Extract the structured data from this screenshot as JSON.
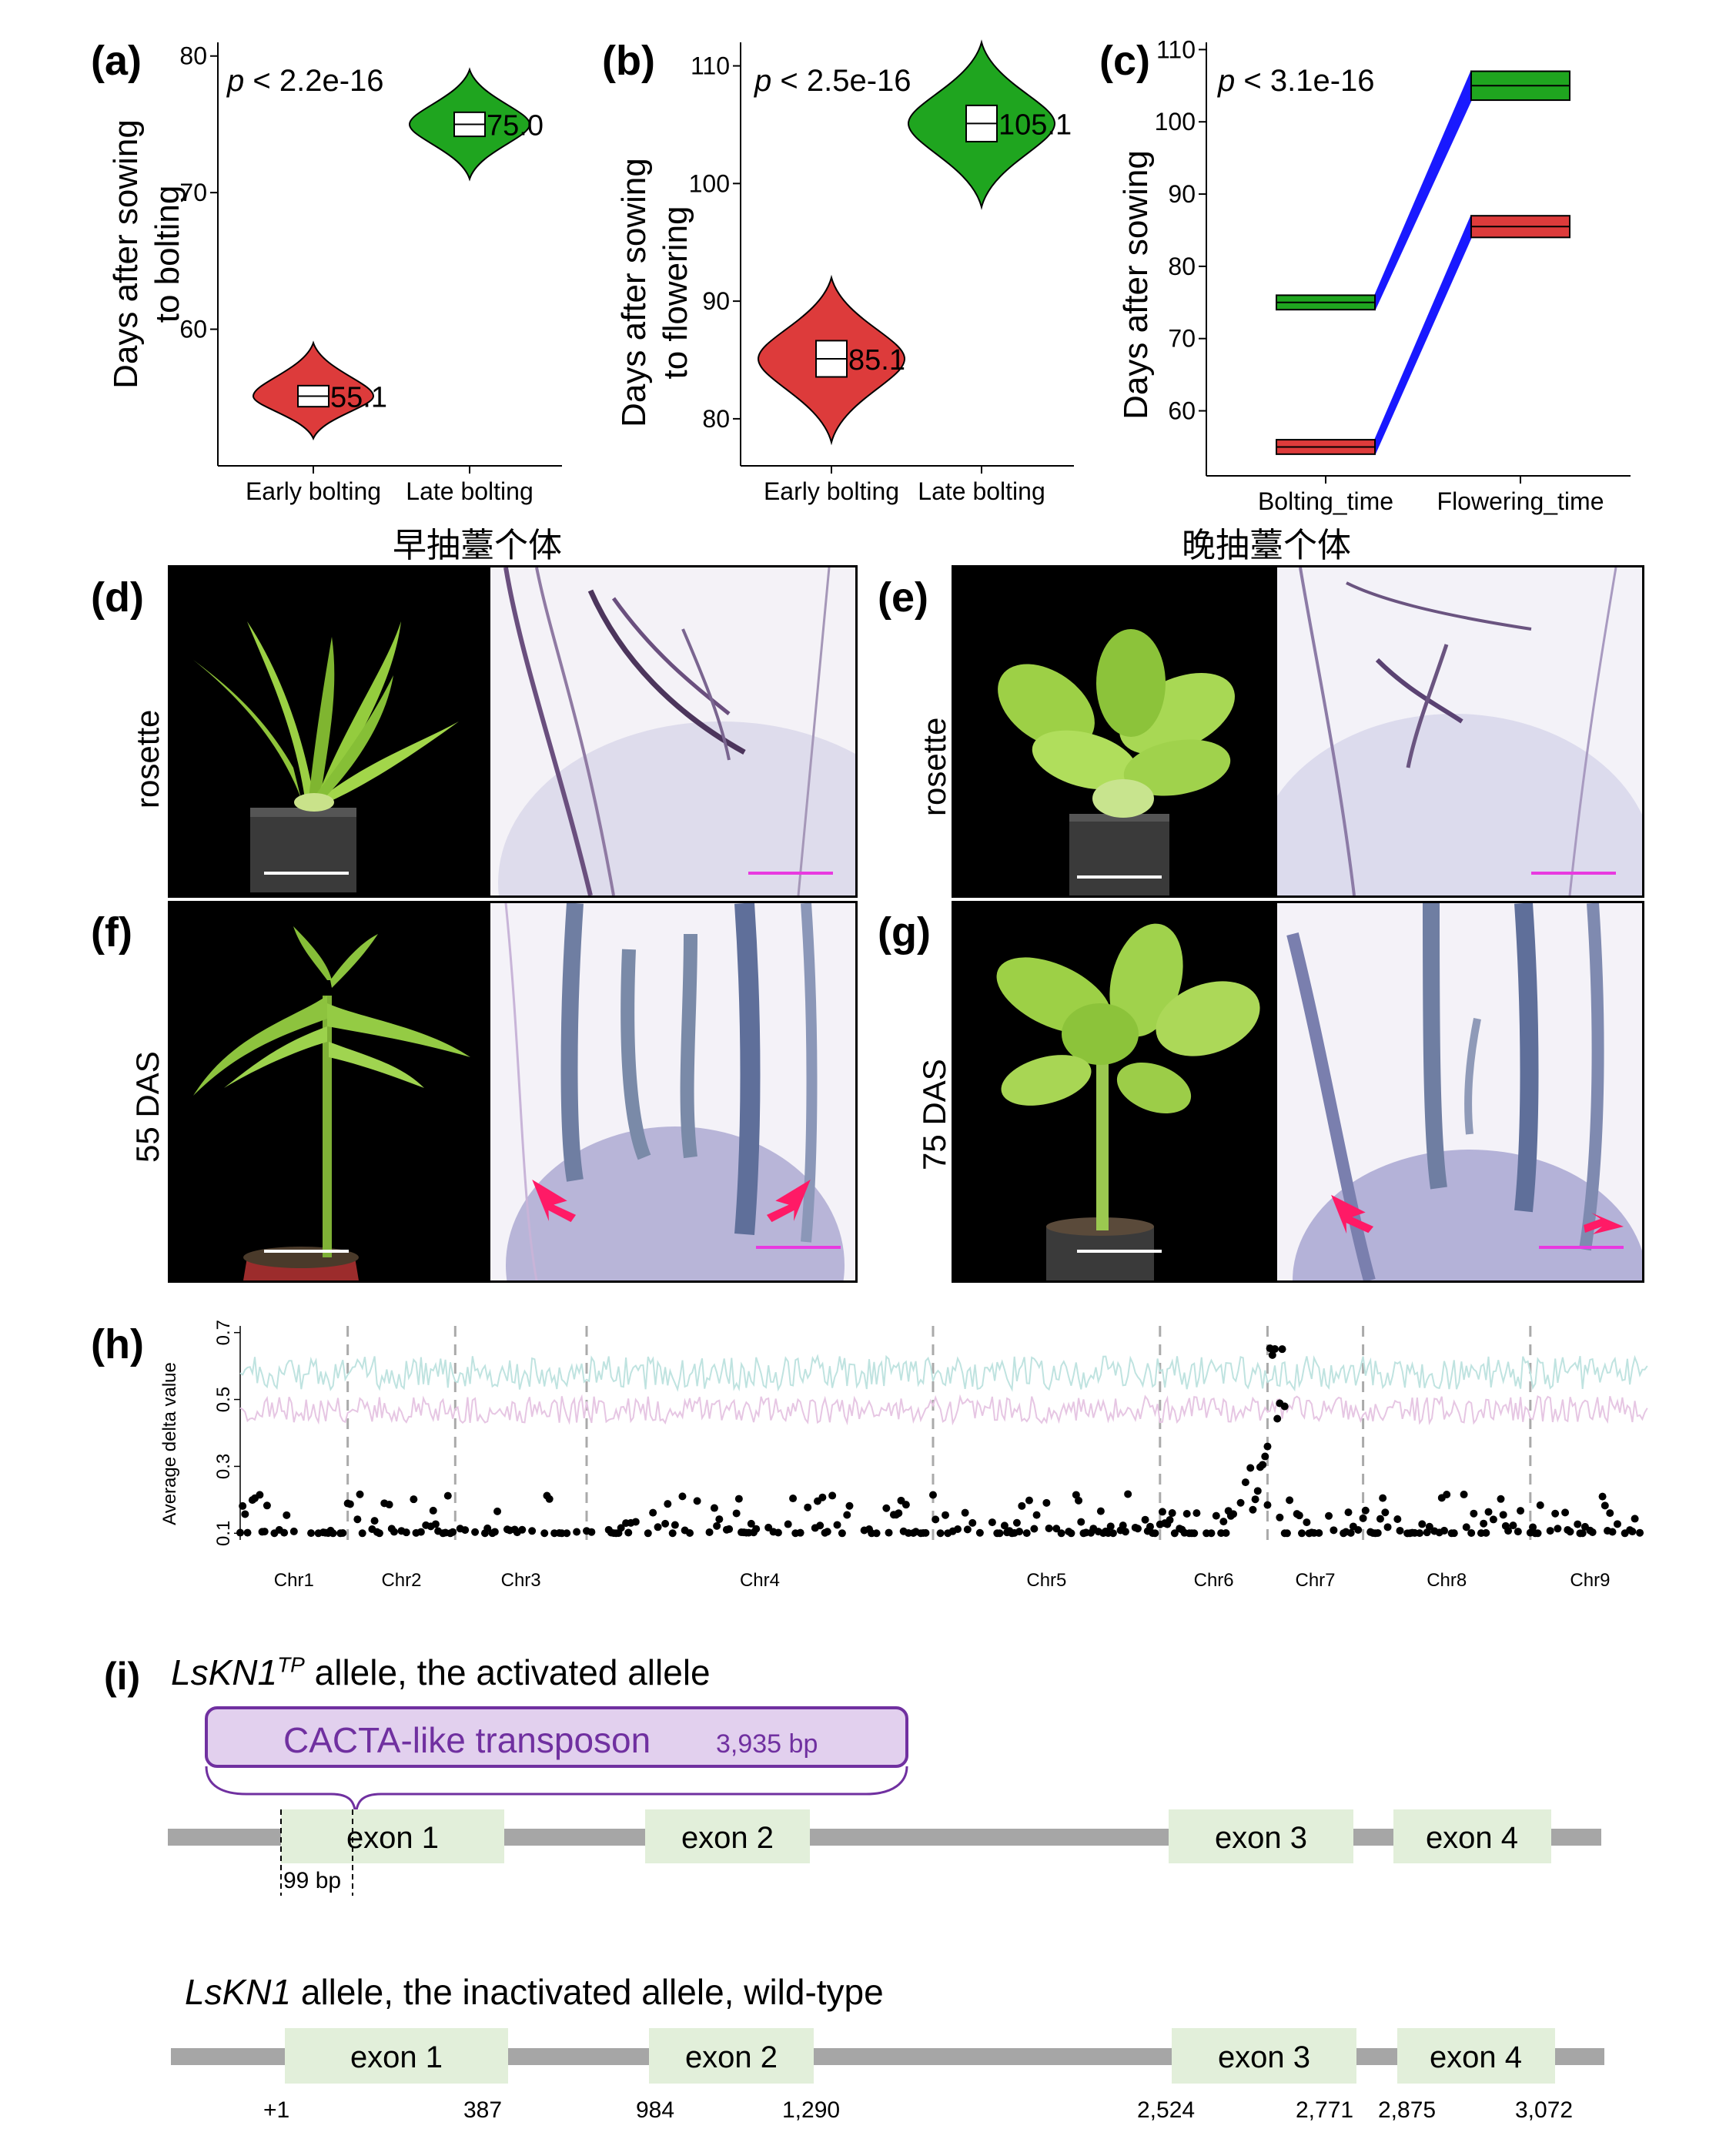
{
  "panels": {
    "a": "(a)",
    "b": "(b)",
    "c": "(c)",
    "d": "(d)",
    "e": "(e)",
    "f": "(f)",
    "g": "(g)",
    "h": "(h)",
    "i": "(i)"
  },
  "chart_data": [
    {
      "id": "a",
      "type": "violin",
      "ylabel_line1": "Days after sowing",
      "ylabel_line2": "to bolting",
      "annotation_p": "p",
      "annotation_rest": " < 2.2e-16",
      "categories": [
        "Early bolting",
        "Late bolting"
      ],
      "yticks": [
        "60",
        "70",
        "80"
      ],
      "tick_values": [
        60,
        70,
        80
      ],
      "ylim": [
        50,
        81
      ],
      "medians": [
        55.1,
        75.0
      ],
      "median_labels": [
        "55.1",
        "75.0"
      ],
      "ranges": [
        [
          52,
          59
        ],
        [
          71,
          79
        ]
      ],
      "colors": [
        "#dd3b3b",
        "#1fa51f"
      ]
    },
    {
      "id": "b",
      "type": "violin",
      "ylabel_line1": "Days after sowing",
      "ylabel_line2": "to flowering",
      "annotation_p": "p",
      "annotation_rest": " < 2.5e-16",
      "categories": [
        "Early bolting",
        "Late bolting"
      ],
      "yticks": [
        "80",
        "90",
        "100",
        "110"
      ],
      "tick_values": [
        80,
        90,
        100,
        110
      ],
      "ylim": [
        76,
        112
      ],
      "medians": [
        85.1,
        105.1
      ],
      "median_labels": [
        "85.1",
        "105.1"
      ],
      "ranges": [
        [
          78,
          92
        ],
        [
          98,
          112
        ]
      ],
      "colors": [
        "#dd3b3b",
        "#1fa51f"
      ]
    },
    {
      "id": "c",
      "type": "paired-lines",
      "ylabel": "Days after sowing",
      "annotation_p": "p",
      "annotation_rest": " < 3.1e-16",
      "categories": [
        "Bolting_time",
        "Flowering_time"
      ],
      "yticks": [
        "60",
        "70",
        "80",
        "90",
        "100",
        "110"
      ],
      "tick_values": [
        60,
        70,
        80,
        90,
        100,
        110
      ],
      "ylim": [
        51,
        111
      ],
      "groups": [
        {
          "color": "#dd3b3b",
          "box_x1": [
            54,
            56
          ],
          "box_x2": [
            84,
            87
          ],
          "from": [
            54,
            56
          ],
          "to": [
            84,
            87
          ]
        },
        {
          "color": "#1fa51f",
          "box_x1": [
            74,
            76
          ],
          "box_x2": [
            103,
            107
          ],
          "from": [
            74,
            76
          ],
          "to": [
            103,
            107
          ]
        }
      ]
    }
  ],
  "titles": {
    "early": "早抽薹个体",
    "late": "晚抽薹个体"
  },
  "row_labels": {
    "d": "rosette",
    "e": "rosette",
    "f": "55 DAS",
    "g": "75 DAS"
  },
  "manhattan": {
    "ylabel": "Average delta value",
    "yticks": [
      "0.1",
      "0.3",
      "0.5",
      "0.7"
    ],
    "tick_values": [
      0.1,
      0.3,
      0.5,
      0.7
    ],
    "ylim": [
      0.08,
      0.72
    ],
    "chromosomes": [
      "Chr1",
      "Chr2",
      "Chr3",
      "Chr4",
      "Chr5",
      "Chr6",
      "Chr7",
      "Chr8",
      "Chr9"
    ],
    "chr_widths": [
      0.09,
      0.09,
      0.11,
      0.29,
      0.19,
      0.09,
      0.08,
      0.14,
      0.1
    ],
    "threshold_high_color": "#bfe3e0",
    "threshold_low_color": "#e6c6e3",
    "threshold_high": 0.58,
    "threshold_low": 0.47
  },
  "gene": {
    "allele1_name": "LsKN1",
    "allele1_sup": "TP",
    "allele1_desc": " allele, the activated allele",
    "transposon_label": "CACTA-like transposon",
    "transposon_size": "3,935 bp",
    "insertion_label": "99 bp",
    "allele2_name": "LsKN1",
    "allele2_desc": " allele, the inactivated allele, wild-type",
    "exons": [
      "exon 1",
      "exon 2",
      "exon 3",
      "exon 4"
    ],
    "coords": [
      "+1",
      "387",
      "984",
      "1,290",
      "2,524",
      "2,771",
      "2,875",
      "3,072"
    ],
    "colors": {
      "exon": "#e2efda",
      "line": "#a6a6a6",
      "transposon_fill": "#e2d0ee",
      "transposon_border": "#7030a0",
      "transposon_text": "#7030a0"
    }
  }
}
